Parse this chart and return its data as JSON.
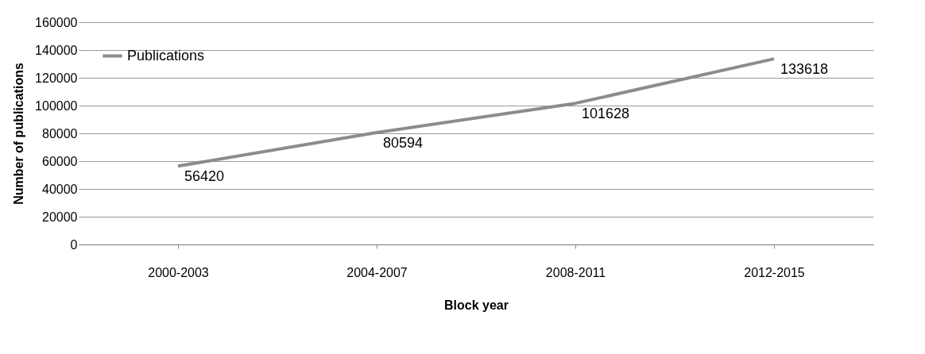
{
  "chart_data": {
    "type": "line",
    "xlabel": "Block year",
    "ylabel": "Number of publications",
    "categories": [
      "2000-2003",
      "2004-2007",
      "2008-2011",
      "2012-2015"
    ],
    "series": [
      {
        "name": "Publications",
        "color": "#8c8c8c",
        "values": [
          56420,
          80594,
          101628,
          133618
        ]
      }
    ],
    "ylim": [
      0,
      160000
    ],
    "yticks": [
      0,
      20000,
      40000,
      60000,
      80000,
      100000,
      120000,
      140000,
      160000
    ],
    "grid": "y",
    "legend": "top left",
    "data_labels": true
  }
}
